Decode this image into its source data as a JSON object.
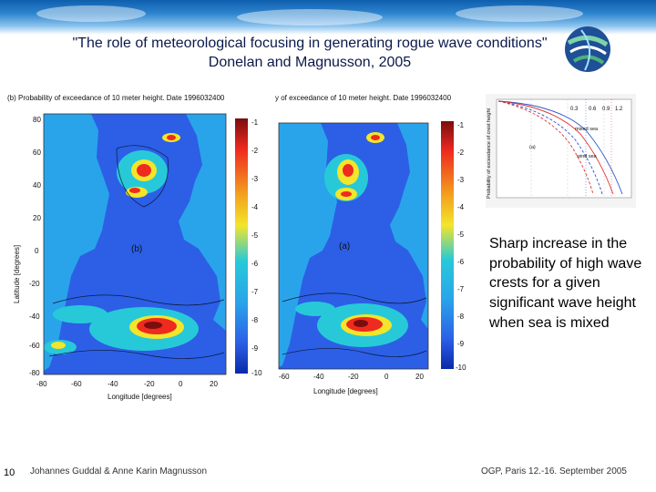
{
  "slide": {
    "title_line1": "\"The role of meteorological focusing in generating rogue wave conditions\"",
    "title_line2": "Donelan and Magnusson, 2005",
    "caption": "Sharp increase in the probability of high wave crests for a given significant wave height when sea is mixed",
    "page_number": "10",
    "footer_left": "Johannes Guddal & Anne Karin Magnusson",
    "footer_right": "OGP, Paris 12.-16. September 2005"
  },
  "map_left": {
    "title": "(b) Probability of exceedance of 10 meter height. Date 1996032400",
    "panel_label": "(b)",
    "ylabel": "Latitude [degrees]",
    "xlabel": "Longitude [degrees]",
    "yticks": [
      "80",
      "60",
      "40",
      "20",
      "0",
      "-20",
      "-40",
      "-60",
      "-80"
    ],
    "xticks": [
      "-80",
      "-60",
      "-40",
      "-20",
      "0",
      "20"
    ],
    "colorbar_ticks": [
      "-1",
      "-2",
      "-3",
      "-4",
      "-5",
      "-6",
      "-7",
      "-8",
      "-9",
      "-10"
    ]
  },
  "map_right": {
    "title": "y of exceedance of 10 meter height. Date 1996032400",
    "panel_label": "(a)",
    "xlabel": "Longitude [degrees]",
    "xticks": [
      "-60",
      "-40",
      "-20",
      "0",
      "20"
    ],
    "colorbar_ticks": [
      "-1",
      "-2",
      "-3",
      "-4",
      "-5",
      "-6",
      "-7",
      "-8",
      "-9",
      "-10"
    ]
  },
  "inset": {
    "ylabel": "Probability of exceedance of crest height",
    "legend": [
      "mixed sea",
      "wind sea"
    ],
    "label": "(a)",
    "top_values": [
      "0.3",
      "0.6",
      "0.9",
      "1.2"
    ]
  }
}
